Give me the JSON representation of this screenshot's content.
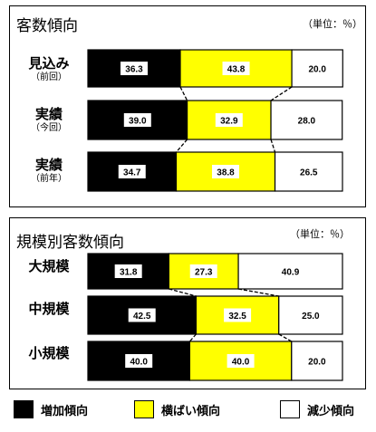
{
  "colors": {
    "increase": "#000000",
    "flat": "#ffff00",
    "decrease": "#ffffff"
  },
  "legend": [
    {
      "key": "increase",
      "label": "増加傾向"
    },
    {
      "key": "flat",
      "label": "横ばい傾向"
    },
    {
      "key": "decrease",
      "label": "減少傾向"
    }
  ],
  "chart_data": [
    {
      "type": "bar",
      "title": "客数傾向",
      "unit": "（単位：％）",
      "stacked": true,
      "categories": [
        {
          "label": "見込み",
          "sub": "（前回）"
        },
        {
          "label": "実績",
          "sub": "（今回）"
        },
        {
          "label": "実績",
          "sub": "（前年）"
        }
      ],
      "series": [
        {
          "key": "increase",
          "values": [
            36.3,
            39.0,
            34.7
          ]
        },
        {
          "key": "flat",
          "values": [
            43.8,
            32.9,
            38.8
          ]
        },
        {
          "key": "decrease",
          "values": [
            20.0,
            28.0,
            26.5
          ]
        }
      ]
    },
    {
      "type": "bar",
      "title": "規模別客数傾向",
      "unit": "（単位：％）",
      "stacked": true,
      "categories": [
        {
          "label": "大規模",
          "sub": ""
        },
        {
          "label": "中規模",
          "sub": ""
        },
        {
          "label": "小規模",
          "sub": ""
        }
      ],
      "series": [
        {
          "key": "increase",
          "values": [
            31.8,
            42.5,
            40.0
          ]
        },
        {
          "key": "flat",
          "values": [
            27.3,
            32.5,
            40.0
          ]
        },
        {
          "key": "decrease",
          "values": [
            40.9,
            25.0,
            20.0
          ]
        }
      ]
    }
  ]
}
